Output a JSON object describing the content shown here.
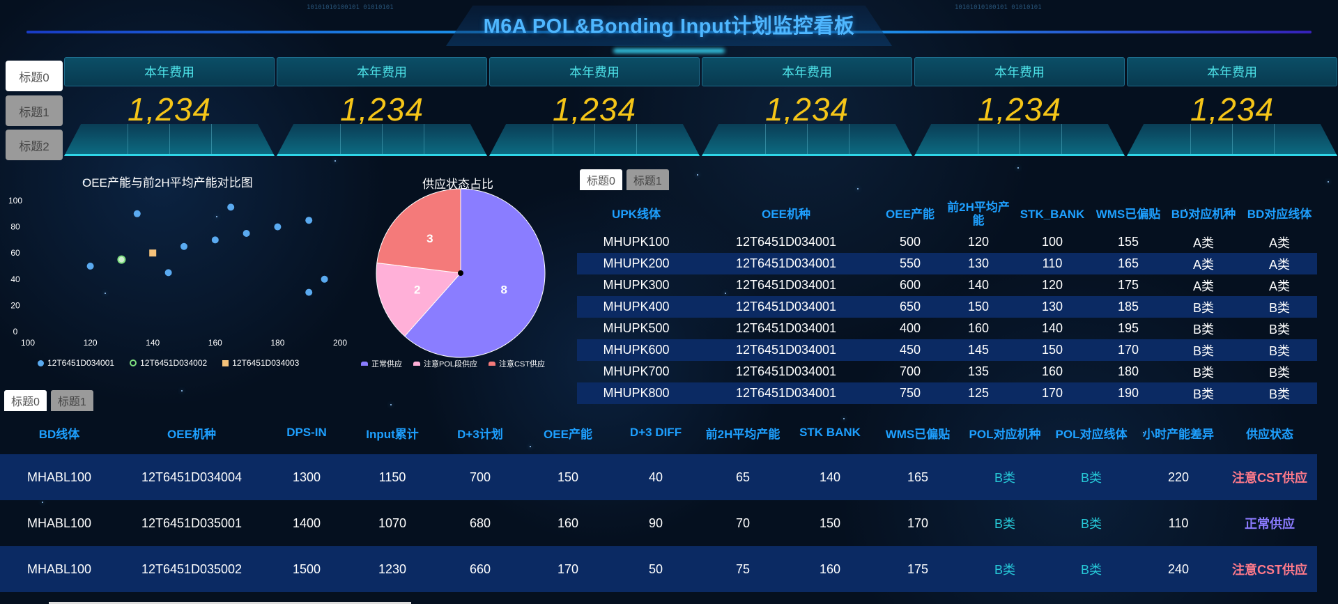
{
  "header": {
    "title": "M6A POL&Bonding Input计划监控看板"
  },
  "side_tabs": [
    "标题0",
    "标题1",
    "标题2"
  ],
  "kpis": [
    {
      "label": "本年费用",
      "value": "1,234"
    },
    {
      "label": "本年费用",
      "value": "1,234"
    },
    {
      "label": "本年费用",
      "value": "1,234"
    },
    {
      "label": "本年费用",
      "value": "1,234"
    },
    {
      "label": "本年费用",
      "value": "1,234"
    },
    {
      "label": "本年费用",
      "value": "1,234"
    }
  ],
  "chart_data": [
    {
      "type": "scatter",
      "title": "OEE产能与前2H平均产能对比图",
      "xlim": [
        100,
        200
      ],
      "ylim": [
        0,
        100
      ],
      "x_ticks": [
        100,
        120,
        140,
        160,
        180,
        200
      ],
      "y_ticks": [
        0,
        20,
        40,
        60,
        80,
        100
      ],
      "grid": false,
      "legend_position": "bottom",
      "series": [
        {
          "name": "12T6451D034001",
          "color": "#5aaaf0",
          "marker": "circle",
          "points": [
            [
              120,
              50
            ],
            [
              135,
              90
            ],
            [
              145,
              45
            ],
            [
              150,
              65
            ],
            [
              160,
              70
            ],
            [
              165,
              95
            ],
            [
              170,
              75
            ],
            [
              180,
              80
            ],
            [
              190,
              85
            ],
            [
              190,
              30
            ],
            [
              195,
              40
            ]
          ]
        },
        {
          "name": "12T6451D034002",
          "color": "#7fe07f",
          "marker": "ring",
          "points": [
            [
              130,
              55
            ]
          ]
        },
        {
          "name": "12T6451D034003",
          "color": "#f5c27a",
          "marker": "square",
          "points": [
            [
              140,
              60
            ]
          ]
        }
      ]
    },
    {
      "type": "pie",
      "title": "供应状态占比",
      "legend_position": "bottom",
      "slices": [
        {
          "name": "正常供应",
          "value": 8,
          "color": "#8a7dff"
        },
        {
          "name": "注意POL段供应",
          "value": 2,
          "color": "#ffb0d8"
        },
        {
          "name": "注意CST供应",
          "value": 3,
          "color": "#f47a7a"
        }
      ]
    }
  ],
  "upper_tabs": [
    "标题0",
    "标题1"
  ],
  "upper_table": {
    "headers": [
      "UPK线体",
      "OEE机种",
      "OEE产能",
      "前2H平均产能",
      "STK_BANK",
      "WMS已偏贴",
      "BD对应机种",
      "BD对应线体"
    ],
    "rows": [
      [
        "MHUPK100",
        "12T6451D034001",
        "500",
        "120",
        "100",
        "155",
        "A类",
        "A类"
      ],
      [
        "MHUPK200",
        "12T6451D034001",
        "550",
        "130",
        "110",
        "165",
        "A类",
        "A类"
      ],
      [
        "MHUPK300",
        "12T6451D034001",
        "600",
        "140",
        "120",
        "175",
        "A类",
        "A类"
      ],
      [
        "MHUPK400",
        "12T6451D034001",
        "650",
        "150",
        "130",
        "185",
        "B类",
        "B类"
      ],
      [
        "MHUPK500",
        "12T6451D034001",
        "400",
        "160",
        "140",
        "195",
        "B类",
        "B类"
      ],
      [
        "MHUPK600",
        "12T6451D034001",
        "450",
        "145",
        "150",
        "170",
        "B类",
        "B类"
      ],
      [
        "MHUPK700",
        "12T6451D034001",
        "700",
        "135",
        "160",
        "180",
        "B类",
        "B类"
      ],
      [
        "MHUPK800",
        "12T6451D034001",
        "750",
        "125",
        "170",
        "190",
        "B类",
        "B类"
      ]
    ]
  },
  "lower_tabs": [
    "标题0",
    "标题1"
  ],
  "lower_table": {
    "headers": [
      "BD线体",
      "OEE机种",
      "DPS-IN",
      "Input累计",
      "D+3计划",
      "OEE产能",
      "D+3 DIFF",
      "前2H平均产能",
      "STK BANK",
      "WMS已偏贴",
      "POL对应机种",
      "POL对应线体",
      "小时产能差异",
      "供应状态"
    ],
    "rows": [
      [
        "MHABL100",
        "12T6451D034004",
        "1300",
        "1150",
        "700",
        "150",
        "40",
        "65",
        "140",
        "165",
        "B类",
        "B类",
        "220",
        "注意CST供应"
      ],
      [
        "MHABL100",
        "12T6451D035001",
        "1400",
        "1070",
        "680",
        "160",
        "90",
        "70",
        "150",
        "170",
        "B类",
        "B类",
        "110",
        "正常供应"
      ],
      [
        "MHABL100",
        "12T6451D035002",
        "1500",
        "1230",
        "660",
        "170",
        "50",
        "75",
        "160",
        "175",
        "B类",
        "B类",
        "240",
        "注意CST供应"
      ]
    ]
  }
}
